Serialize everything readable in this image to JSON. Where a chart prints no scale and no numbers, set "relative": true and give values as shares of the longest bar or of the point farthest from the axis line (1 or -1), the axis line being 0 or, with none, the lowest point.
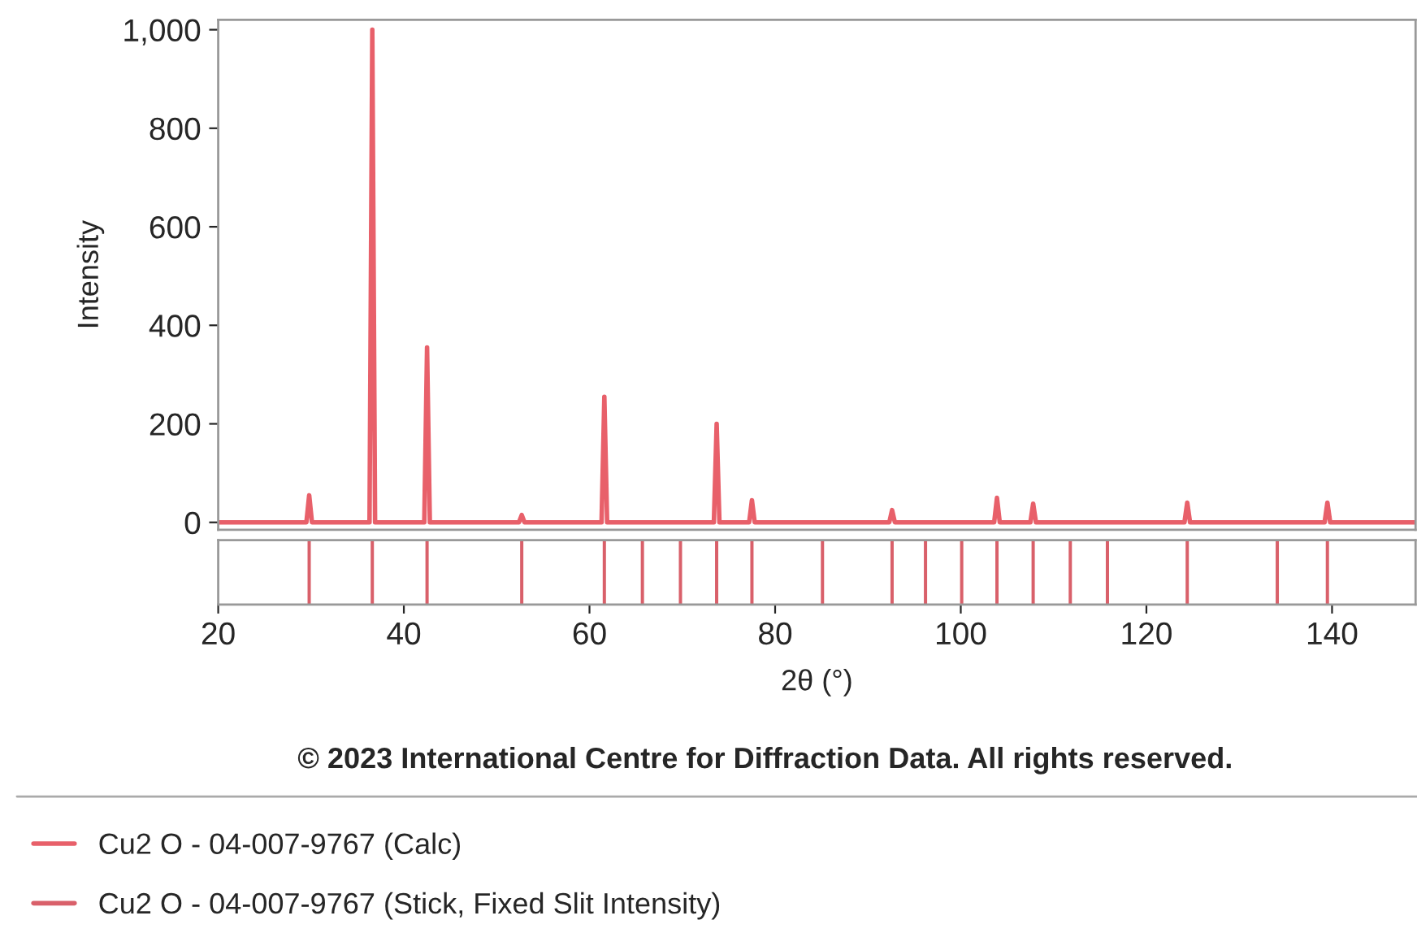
{
  "chart_data": [
    {
      "type": "line",
      "ylabel": "Intensity",
      "xlim": [
        20,
        149
      ],
      "ylim": [
        -15,
        1020
      ],
      "yticks": [
        0,
        200,
        400,
        600,
        800,
        {
          "value": 1000,
          "label": "1,000"
        }
      ],
      "tick_labels": "y",
      "grid": false,
      "marker": "none",
      "line_style": "solid",
      "series": [
        {
          "name": "Cu2 O - 04-007-9767 (Calc)",
          "color": "#e8606a",
          "x": [
            20,
            29.5,
            29.8,
            30.1,
            36.3,
            36.6,
            36.9,
            42.2,
            42.5,
            42.8,
            52.4,
            52.7,
            53.0,
            61.3,
            61.6,
            61.9,
            73.4,
            73.7,
            74.0,
            77.2,
            77.5,
            77.8,
            92.3,
            92.6,
            92.9,
            103.6,
            103.9,
            104.2,
            107.5,
            107.8,
            108.1,
            124.1,
            124.4,
            124.7,
            139.2,
            139.5,
            139.8,
            149
          ],
          "values": [
            0,
            0,
            55,
            0,
            0,
            1000,
            0,
            0,
            355,
            0,
            0,
            15,
            0,
            0,
            255,
            0,
            0,
            200,
            0,
            0,
            45,
            0,
            0,
            25,
            0,
            0,
            50,
            0,
            0,
            38,
            0,
            0,
            40,
            0,
            0,
            40,
            0,
            0
          ]
        }
      ]
    },
    {
      "type": "bar",
      "relative": true,
      "xlim": [
        20,
        149
      ],
      "xticks": [
        20,
        40,
        60,
        80,
        100,
        120,
        140
      ],
      "xlabel": "2θ (°)",
      "tick_labels": "x",
      "legend": "bottom",
      "annotations": [
        "© 2023 International Centre for Diffraction Data. All rights reserved."
      ],
      "series": [
        {
          "name": "Cu2 O - 04-007-9767 (Stick, Fixed Slit Intensity)",
          "color": "#d9606a",
          "x": [
            29.8,
            36.6,
            42.5,
            52.7,
            61.6,
            65.7,
            69.8,
            73.7,
            77.5,
            85.1,
            92.6,
            96.2,
            100.1,
            103.9,
            107.8,
            111.8,
            115.8,
            124.4,
            134.1,
            139.5
          ],
          "values": [
            1,
            1,
            1,
            1,
            1,
            1,
            1,
            1,
            1,
            1,
            1,
            1,
            1,
            1,
            1,
            1,
            1,
            1,
            1,
            1
          ]
        }
      ]
    }
  ]
}
